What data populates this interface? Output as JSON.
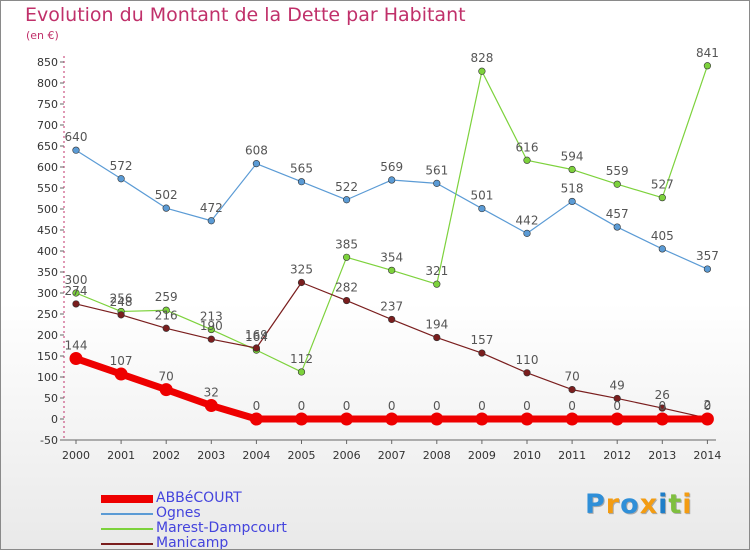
{
  "title": "Evolution du Montant de la Dette par Habitant",
  "unit": "(en €)",
  "logo_text": "Proxiti",
  "chart_data": {
    "type": "line",
    "title": "Evolution du Montant de la Dette par Habitant",
    "ylabel": "(en €)",
    "xlabel": "",
    "x": [
      2000,
      2001,
      2002,
      2003,
      2004,
      2005,
      2006,
      2007,
      2008,
      2009,
      2010,
      2011,
      2012,
      2013,
      2014
    ],
    "ylim": [
      -50,
      850
    ],
    "yticks": [
      -50,
      0,
      50,
      100,
      150,
      200,
      250,
      300,
      350,
      400,
      450,
      500,
      550,
      600,
      650,
      700,
      750,
      800,
      850
    ],
    "grid": false,
    "legend_position": "bottom-left",
    "series": [
      {
        "name": "ABBéCOURT",
        "color": "#ee0000",
        "values": [
          144,
          107,
          70,
          32,
          0,
          0,
          0,
          0,
          0,
          0,
          0,
          0,
          0,
          0,
          0
        ],
        "labels": [
          "144",
          "107",
          "70",
          "32",
          "0",
          "0",
          "0",
          "0",
          "0",
          "0",
          "0",
          "0",
          "0",
          "0",
          "0"
        ]
      },
      {
        "name": "Ognes",
        "color": "#5b9bd5",
        "values": [
          640,
          572,
          502,
          472,
          608,
          565,
          522,
          569,
          561,
          501,
          442,
          518,
          457,
          405,
          357
        ],
        "labels": [
          "640",
          "572",
          "502",
          "472",
          "608",
          "565",
          "522",
          "569",
          "561",
          "501",
          "442",
          "518",
          "457",
          "405",
          "357"
        ]
      },
      {
        "name": "Marest-Dampcourt",
        "color": "#7dd23c",
        "values": [
          300,
          256,
          259,
          213,
          164,
          112,
          385,
          354,
          321,
          828,
          616,
          594,
          559,
          527,
          841
        ],
        "labels": [
          "300",
          "256",
          "259",
          "213",
          "164",
          "112",
          "385",
          "354",
          "321",
          "828",
          "616",
          "594",
          "559",
          "527",
          "841"
        ]
      },
      {
        "name": "Manicamp",
        "color": "#7a1e1e",
        "values": [
          274,
          248,
          216,
          190,
          169,
          325,
          282,
          237,
          194,
          157,
          110,
          70,
          49,
          26,
          2
        ],
        "labels": [
          "274",
          "248",
          "216",
          "190",
          "169",
          "325",
          "282",
          "237",
          "194",
          "157",
          "110",
          "70",
          "49",
          "26",
          "2"
        ]
      }
    ]
  }
}
